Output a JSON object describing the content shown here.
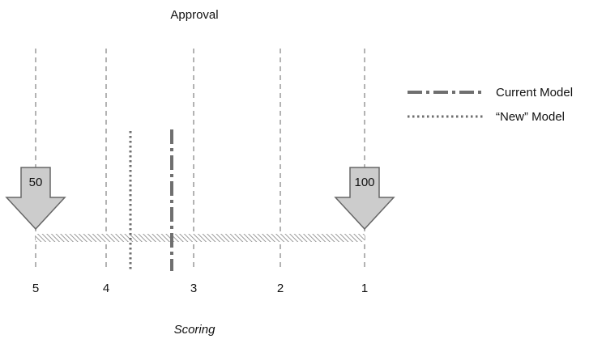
{
  "top_label": "Approval",
  "bottom_label": "Scoring",
  "scale_ticks": [
    "5",
    "4",
    "3",
    "2",
    "1"
  ],
  "arrows": [
    {
      "label": "50"
    },
    {
      "label": "100"
    }
  ],
  "legend": [
    {
      "label": "Current Model",
      "style": "dash-dot"
    },
    {
      "label": "“New” Model",
      "style": "dotted"
    }
  ],
  "colors": {
    "guide_line": "#9a9a9a",
    "marker_line": "#6f6f6f",
    "arrow_fill": "#cccccc",
    "arrow_stroke": "#666666",
    "band_hatch": "#9a9a9a",
    "text": "#111111"
  }
}
